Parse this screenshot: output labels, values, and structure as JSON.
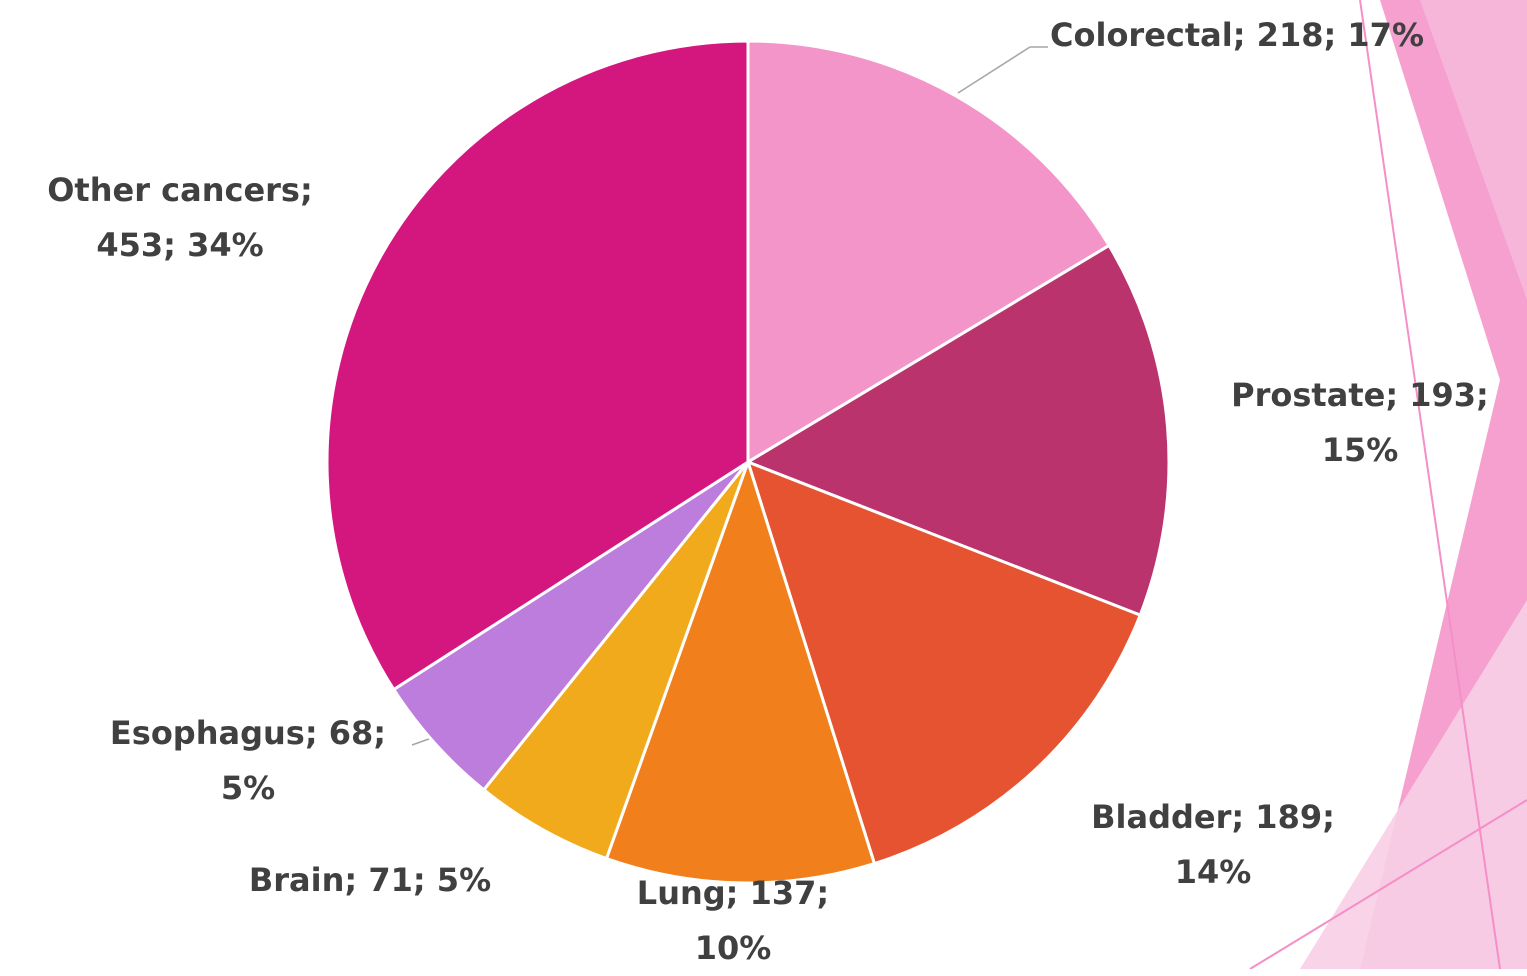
{
  "chart_data": {
    "type": "pie",
    "categories": [
      "Colorectal",
      "Prostate",
      "Bladder",
      "Lung",
      "Brain",
      "Esophagus",
      "Other cancers"
    ],
    "values": [
      218,
      193,
      189,
      137,
      71,
      68,
      453
    ],
    "value_labels": [
      "Colorectal; 218; 17%",
      "Prostate; 193; 15%",
      "Bladder; 189; 14%",
      "Lung; 137; 10%",
      "Brain; 71; 5%",
      "Esophagus; 68; 5%",
      "Other cancers; 453; 34%"
    ],
    "colors": [
      "#f495c9",
      "#bb336c",
      "#e65330",
      "#f07f1c",
      "#f0aa1c",
      "#bc7ddd",
      "#d4177f"
    ]
  }
}
